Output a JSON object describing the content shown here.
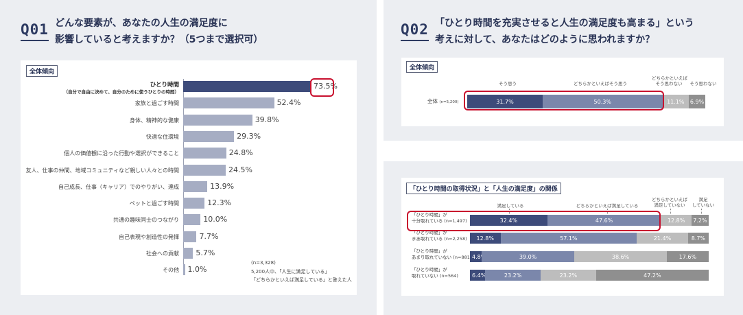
{
  "q1": {
    "badge": "Q01",
    "title_line1": "どんな要素が、あなたの人生の満足度に",
    "title_line2": "影響していると考えますか？（5つまで選択可）",
    "tag": "全体傾向",
    "note_n": "(n=3,328)",
    "note_line1": "5,200人中、「人生に満足している」",
    "note_line2": "「どちらかといえば満足している」と答えた人"
  },
  "q2": {
    "badge": "Q02",
    "title_line1": "「ひとり時間を充実させると人生の満足度も高まる」という",
    "title_line2": "考えに対して、あなたはどのように思われますか？",
    "tag": "全体傾向",
    "row_label": "全体",
    "row_n": "(n=5,200)",
    "headers": [
      "そう思う",
      "どちらかといえばそう思う",
      "どちらかといえば\nそう思わない",
      "そう思わない"
    ]
  },
  "q3": {
    "tag": "「ひとり時間の取得状況」と「人生の満足度」の関係",
    "headers": [
      "満足している",
      "どちらかといえば満足している",
      "どちらかといえば\n満足していない",
      "満足\nしていない"
    ],
    "rows": [
      {
        "line1": "「ひとり時間」が",
        "line2": "十分取れている",
        "n": "(n=1,497)"
      },
      {
        "line1": "「ひとり時間」が",
        "line2": "まあ取れている",
        "n": "(n=2,258)"
      },
      {
        "line1": "「ひとり時間」が",
        "line2": "あまり取れていない",
        "n": "(n=881)"
      },
      {
        "line1": "「ひとり時間」が",
        "line2": "取れていない",
        "n": "(n=564)"
      }
    ]
  },
  "colors": {
    "navy": "#3d4b7a",
    "slate": "#7b87ab",
    "light_gray": "#bdbdbd",
    "dark_gray": "#8f8f8f",
    "bar_gray": "#a6adc3",
    "highlight": "#c8102e"
  },
  "chart_data": [
    {
      "type": "bar",
      "orientation": "horizontal",
      "categories": [
        "ひとり時間",
        "家族と過ごす時間",
        "身体、精神的な健康",
        "快適な住環境",
        "個人の価値観に沿った行動や選択ができること",
        "友人、仕事の仲間、地域コミュニティなど親しい人々との時間",
        "自己成長、仕事（キャリア）でのやりがい、達成",
        "ペットと過ごす時間",
        "共通の趣味同士のつながり",
        "自己表現や創造性の発揮",
        "社会への貢献",
        "その他"
      ],
      "category_subtitle": "（自分で自由に決めて、自分のために使うひとりの時間）",
      "values": [
        73.5,
        52.4,
        39.8,
        29.3,
        24.8,
        24.5,
        13.9,
        12.3,
        10.0,
        7.7,
        5.7,
        1.0
      ],
      "value_labels": [
        "73.5%",
        "52.4%",
        "39.8%",
        "29.3%",
        "24.8%",
        "24.5%",
        "13.9%",
        "12.3%",
        "10.0%",
        "7.7%",
        "5.7%",
        "1.0%"
      ],
      "xlim": [
        0,
        100
      ]
    },
    {
      "type": "bar",
      "orientation": "horizontal",
      "stacked": true,
      "categories": [
        "全体"
      ],
      "series": [
        {
          "name": "そう思う",
          "values": [
            31.7
          ],
          "labels": [
            "31.7%"
          ],
          "color": "#3d4b7a"
        },
        {
          "name": "どちらかといえばそう思う",
          "values": [
            50.3
          ],
          "labels": [
            "50.3%"
          ],
          "color": "#7b87ab"
        },
        {
          "name": "どちらかといえばそう思わない",
          "values": [
            11.1
          ],
          "labels": [
            "11.1%"
          ],
          "color": "#bdbdbd"
        },
        {
          "name": "そう思わない",
          "values": [
            6.9
          ],
          "labels": [
            "6.9%"
          ],
          "color": "#8f8f8f"
        }
      ]
    },
    {
      "type": "bar",
      "orientation": "horizontal",
      "stacked": true,
      "categories": [
        "十分取れている",
        "まあ取れている",
        "あまり取れていない",
        "取れていない"
      ],
      "series": [
        {
          "name": "満足している",
          "values": [
            32.4,
            12.8,
            4.8,
            6.4
          ],
          "labels": [
            "32.4%",
            "12.8%",
            "4.8%",
            "6.4%"
          ],
          "color": "#3d4b7a"
        },
        {
          "name": "どちらかといえば満足している",
          "values": [
            47.6,
            57.1,
            39.0,
            23.2
          ],
          "labels": [
            "47.6%",
            "57.1%",
            "39.0%",
            "23.2%"
          ],
          "color": "#7b87ab"
        },
        {
          "name": "どちらかといえば満足していない",
          "values": [
            12.8,
            21.4,
            38.6,
            23.2
          ],
          "labels": [
            "12.8%",
            "21.4%",
            "38.6%",
            "23.2%"
          ],
          "color": "#bdbdbd"
        },
        {
          "name": "満足していない",
          "values": [
            7.2,
            8.7,
            17.6,
            47.2
          ],
          "labels": [
            "7.2%",
            "8.7%",
            "17.6%",
            "47.2%"
          ],
          "color": "#8f8f8f"
        }
      ]
    }
  ]
}
